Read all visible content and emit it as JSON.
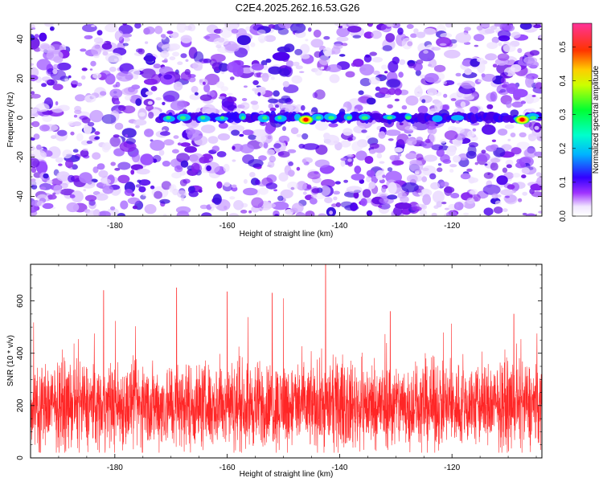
{
  "title": "C2E4.2025.262.16.53.G26",
  "chart_data": [
    {
      "type": "heatmap",
      "xlabel": "Height of straight line (km)",
      "ylabel": "Frequency (Hz)",
      "xlim": [
        -195,
        -104
      ],
      "ylim": [
        -50,
        48
      ],
      "xticks": [
        -180,
        -160,
        -140,
        -120
      ],
      "yticks": [
        -40,
        -20,
        0,
        20,
        40
      ],
      "band_center_hz": 0,
      "band_start_km": -172,
      "peaks": [
        {
          "x": -146,
          "y": -1,
          "value": 0.45
        },
        {
          "x": -107.5,
          "y": -1,
          "value": 0.5
        }
      ],
      "colorbar": {
        "label": "Normalized spectral amplitude",
        "min": 0.0,
        "max": 0.57,
        "ticks": [
          0.0,
          0.1,
          0.2,
          0.3,
          0.4,
          0.5
        ],
        "tick_labels": [
          "0.0",
          "0.1",
          "0.2",
          "0.3",
          "0.4",
          "0.5"
        ],
        "colors": [
          "#ffffff",
          "#8a00e6",
          "#0000ff",
          "#00e6ff",
          "#00ff40",
          "#ffff00",
          "#ff8000",
          "#ff0000",
          "#ff3399"
        ]
      }
    },
    {
      "type": "line",
      "xlabel": "Height of straight line (km)",
      "ylabel": "SNR (10 * v/v)",
      "xlim": [
        -195,
        -104
      ],
      "ylim": [
        0,
        740
      ],
      "xticks": [
        -180,
        -160,
        -140,
        -120
      ],
      "yticks": [
        0,
        200,
        400,
        600
      ],
      "color": "#ff0000",
      "baseline_mean": 200,
      "spikes": [
        {
          "x": -142.5,
          "y": 740
        },
        {
          "x": -169,
          "y": 650
        },
        {
          "x": -160,
          "y": 635
        },
        {
          "x": -182,
          "y": 640
        },
        {
          "x": -152,
          "y": 630
        },
        {
          "x": -109,
          "y": 550
        },
        {
          "x": -150,
          "y": 610
        },
        {
          "x": -131,
          "y": 560
        }
      ]
    }
  ]
}
